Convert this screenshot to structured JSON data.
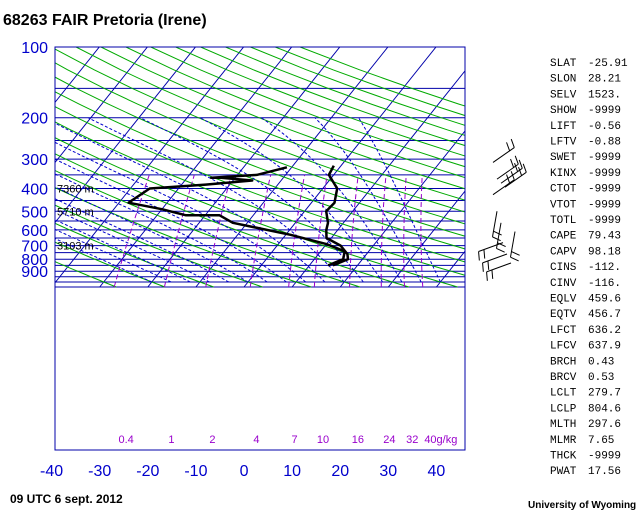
{
  "header": {
    "title": "68263 FAIR Pretoria (Irene)"
  },
  "footer": {
    "left": "09 UTC 6 sept. 2012",
    "right": "University of Wyoming"
  },
  "chart_data": {
    "type": "skew-t",
    "pressure_ticks": [
      100,
      200,
      300,
      400,
      500,
      600,
      700,
      800,
      900
    ],
    "temperature_ticks": [
      -40,
      -30,
      -20,
      -10,
      0,
      10,
      20,
      30,
      40
    ],
    "mixing_ratio_labels": [
      "0.4",
      "1",
      "2",
      "4",
      "7",
      "10",
      "16",
      "24",
      "32",
      "40g/kg"
    ],
    "height_labels": [
      {
        "p": 400,
        "text": "7360 m"
      },
      {
        "p": 500,
        "text": "5710 m"
      },
      {
        "p": 700,
        "text": "3103 m"
      }
    ],
    "temperature_profile": [
      {
        "p": 850,
        "t": 14.9
      },
      {
        "p": 800,
        "t": 17.0
      },
      {
        "p": 760,
        "t": 16.0
      },
      {
        "p": 700,
        "t": 13.2
      },
      {
        "p": 650,
        "t": 9.0
      },
      {
        "p": 600,
        "t": 7.6
      },
      {
        "p": 560,
        "t": 6.8
      },
      {
        "p": 500,
        "t": 4.5
      },
      {
        "p": 460,
        "t": 4.8
      },
      {
        "p": 400,
        "t": 3.0
      },
      {
        "p": 350,
        "t": -1.0
      },
      {
        "p": 320,
        "t": -1.5
      }
    ],
    "dewpoint_profile": [
      {
        "p": 850,
        "t": 13.9
      },
      {
        "p": 800,
        "t": 16.0
      },
      {
        "p": 740,
        "t": 15.0
      },
      {
        "p": 690,
        "t": 10.0
      },
      {
        "p": 630,
        "t": 1.0
      },
      {
        "p": 560,
        "t": -13.0
      },
      {
        "p": 520,
        "t": -17.0
      },
      {
        "p": 520,
        "t": -24.0
      },
      {
        "p": 490,
        "t": -30.0
      },
      {
        "p": 460,
        "t": -38.0
      },
      {
        "p": 400,
        "t": -36.0
      },
      {
        "p": 385,
        "t": -25.0
      },
      {
        "p": 370,
        "t": -16.0
      },
      {
        "p": 360,
        "t": -23.0
      },
      {
        "p": 360,
        "t": -25.0
      },
      {
        "p": 350,
        "t": -16.0
      },
      {
        "p": 325,
        "t": -11.0
      }
    ],
    "wind_barbs": [
      {
        "p": 310
      },
      {
        "p": 365
      },
      {
        "p": 380
      },
      {
        "p": 395
      },
      {
        "p": 425
      },
      {
        "p": 500
      },
      {
        "p": 560
      },
      {
        "p": 610
      },
      {
        "p": 680
      },
      {
        "p": 760
      },
      {
        "p": 830
      }
    ]
  },
  "indices": [
    {
      "name": "SLAT",
      "value": "-25.91"
    },
    {
      "name": "SLON",
      "value": "28.21"
    },
    {
      "name": "SELV",
      "value": "1523."
    },
    {
      "name": "SHOW",
      "value": "-9999"
    },
    {
      "name": "LIFT",
      "value": "-0.56"
    },
    {
      "name": "LFTV",
      "value": "-0.88"
    },
    {
      "name": "SWET",
      "value": "-9999"
    },
    {
      "name": "KINX",
      "value": "-9999"
    },
    {
      "name": "CTOT",
      "value": "-9999"
    },
    {
      "name": "VTOT",
      "value": "-9999"
    },
    {
      "name": "TOTL",
      "value": "-9999"
    },
    {
      "name": "CAPE",
      "value": "79.43"
    },
    {
      "name": "CAPV",
      "value": "98.18"
    },
    {
      "name": "CINS",
      "value": "-112."
    },
    {
      "name": "CINV",
      "value": "-116."
    },
    {
      "name": "EQLV",
      "value": "459.6"
    },
    {
      "name": "EQTV",
      "value": "456.7"
    },
    {
      "name": "LFCT",
      "value": "636.2"
    },
    {
      "name": "LFCV",
      "value": "637.9"
    },
    {
      "name": "BRCH",
      "value": "0.43"
    },
    {
      "name": "BRCV",
      "value": "0.53"
    },
    {
      "name": "LCLT",
      "value": "279.7"
    },
    {
      "name": "LCLP",
      "value": "804.6"
    },
    {
      "name": "MLTH",
      "value": "297.6"
    },
    {
      "name": "MLMR",
      "value": "7.65"
    },
    {
      "name": "THCK",
      "value": "-9999"
    },
    {
      "name": "PWAT",
      "value": "17.56"
    }
  ],
  "colors": {
    "isobar": "#0000aa",
    "isotherm": "#0000aa",
    "dry_adiabat": "#00aa00",
    "moist_adiabat": "#0000cc",
    "mixing_ratio": "#9900cc",
    "profile": "#000000",
    "tick_text": "#0000cc"
  }
}
